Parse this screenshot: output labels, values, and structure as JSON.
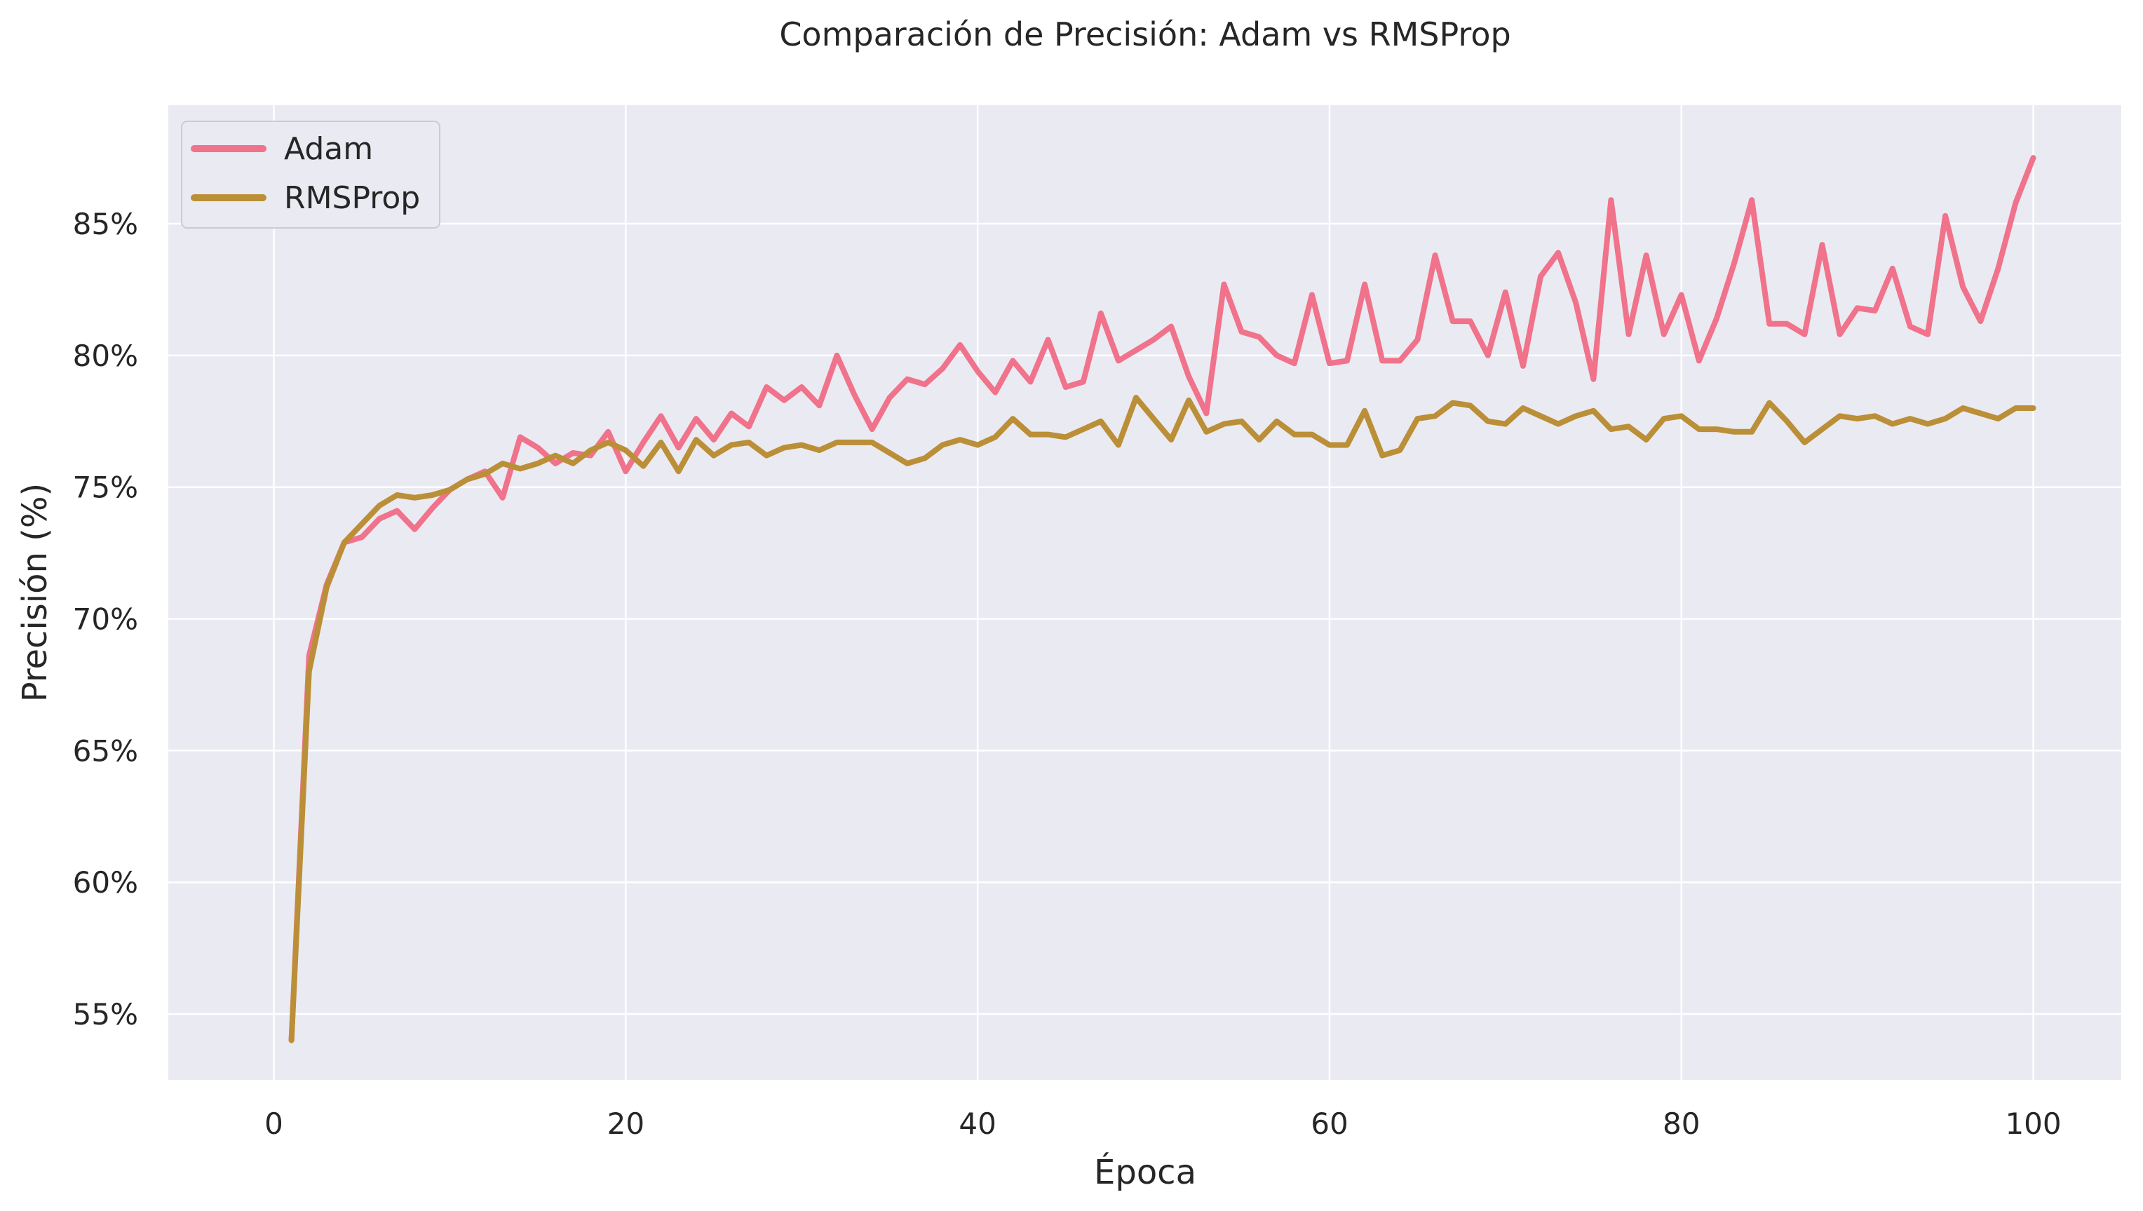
{
  "chart_data": {
    "type": "line",
    "title": "Comparación de Precisión: Adam vs RMSProp",
    "xlabel": "Época",
    "ylabel": "Precisión (%)",
    "xlim": [
      -6,
      105
    ],
    "ylim": [
      52.5,
      89.5
    ],
    "x_ticks": [
      0,
      20,
      40,
      60,
      80,
      100
    ],
    "x_tick_labels": [
      "0",
      "20",
      "40",
      "60",
      "80",
      "100"
    ],
    "y_ticks": [
      55,
      60,
      65,
      70,
      75,
      80,
      85
    ],
    "y_tick_labels": [
      "55%",
      "60%",
      "65%",
      "70%",
      "75%",
      "80%",
      "85%"
    ],
    "grid": true,
    "legend": "top-left",
    "x": [
      1,
      2,
      3,
      4,
      5,
      6,
      7,
      8,
      9,
      10,
      11,
      12,
      13,
      14,
      15,
      16,
      17,
      18,
      19,
      20,
      21,
      22,
      23,
      24,
      25,
      26,
      27,
      28,
      29,
      30,
      31,
      32,
      33,
      34,
      35,
      36,
      37,
      38,
      39,
      40,
      41,
      42,
      43,
      44,
      45,
      46,
      47,
      48,
      49,
      50,
      51,
      52,
      53,
      54,
      55,
      56,
      57,
      58,
      59,
      60,
      61,
      62,
      63,
      64,
      65,
      66,
      67,
      68,
      69,
      70,
      71,
      72,
      73,
      74,
      75,
      76,
      77,
      78,
      79,
      80,
      81,
      82,
      83,
      84,
      85,
      86,
      87,
      88,
      89,
      90,
      91,
      92,
      93,
      94,
      95,
      96,
      97,
      98,
      99,
      100
    ],
    "series": [
      {
        "name": "Adam",
        "color": "#f0728b",
        "values": [
          54.0,
          68.6,
          71.3,
          72.9,
          73.1,
          73.8,
          74.1,
          73.4,
          74.2,
          74.9,
          75.3,
          75.6,
          74.6,
          76.9,
          76.5,
          75.9,
          76.3,
          76.2,
          77.1,
          75.6,
          76.7,
          77.7,
          76.5,
          77.6,
          76.8,
          77.8,
          77.3,
          78.8,
          78.3,
          78.8,
          78.1,
          80.0,
          78.5,
          77.2,
          78.4,
          79.1,
          78.9,
          79.5,
          80.4,
          79.4,
          78.6,
          79.8,
          79.0,
          80.6,
          78.8,
          79.0,
          81.6,
          79.8,
          80.2,
          80.6,
          81.1,
          79.2,
          77.8,
          82.7,
          80.9,
          80.7,
          80.0,
          79.7,
          82.3,
          79.7,
          79.8,
          82.7,
          79.8,
          79.8,
          80.6,
          83.8,
          81.3,
          81.3,
          80.0,
          82.4,
          79.6,
          83.0,
          83.9,
          82.0,
          79.1,
          85.9,
          80.8,
          83.8,
          80.8,
          82.3,
          79.8,
          81.4,
          83.5,
          85.9,
          81.2,
          81.2,
          80.8,
          84.2,
          80.8,
          81.8,
          81.7,
          83.3,
          81.1,
          80.8,
          85.3,
          82.6,
          81.3,
          83.3,
          85.8,
          87.5
        ]
      },
      {
        "name": "RMSProp",
        "color": "#bb8f37",
        "values": [
          54.0,
          68.0,
          71.2,
          72.9,
          73.6,
          74.3,
          74.7,
          74.6,
          74.7,
          74.9,
          75.3,
          75.5,
          75.9,
          75.7,
          75.9,
          76.2,
          75.9,
          76.4,
          76.7,
          76.4,
          75.8,
          76.7,
          75.6,
          76.8,
          76.2,
          76.6,
          76.7,
          76.2,
          76.5,
          76.6,
          76.4,
          76.7,
          76.7,
          76.7,
          76.3,
          75.9,
          76.1,
          76.6,
          76.8,
          76.6,
          76.9,
          77.6,
          77.0,
          77.0,
          76.9,
          77.2,
          77.5,
          76.6,
          78.4,
          77.6,
          76.8,
          78.3,
          77.1,
          77.4,
          77.5,
          76.8,
          77.5,
          77.0,
          77.0,
          76.6,
          76.6,
          77.9,
          76.2,
          76.4,
          77.6,
          77.7,
          78.2,
          78.1,
          77.5,
          77.4,
          78.0,
          77.7,
          77.4,
          77.7,
          77.9,
          77.2,
          77.3,
          76.8,
          77.6,
          77.7,
          77.2,
          77.2,
          77.1,
          77.1,
          78.2,
          77.5,
          76.7,
          77.2,
          77.7,
          77.6,
          77.7,
          77.4,
          77.6,
          77.4,
          77.6,
          78.0,
          77.8,
          77.6,
          78.0,
          78.0
        ]
      }
    ]
  }
}
